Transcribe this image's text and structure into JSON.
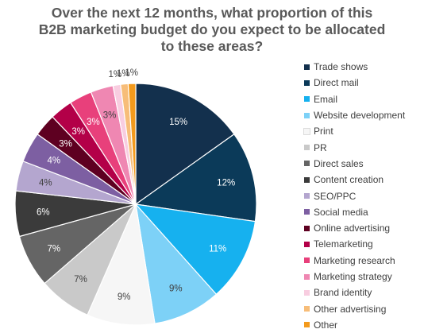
{
  "chart_data": {
    "type": "pie",
    "title_lines": [
      "Over the next 12 months, what proportion of this",
      "B2B marketing budget do you expect to be allocated",
      "to these areas?"
    ],
    "legend_position": "right",
    "slices": [
      {
        "label": "Trade shows",
        "value": 15,
        "display": "15%",
        "color": "#13304d"
      },
      {
        "label": "Direct mail",
        "value": 12,
        "display": "12%",
        "color": "#0b3a59"
      },
      {
        "label": "Email",
        "value": 11,
        "display": "11%",
        "color": "#16b1ef"
      },
      {
        "label": "Website development",
        "value": 9,
        "display": "9%",
        "color": "#7dd1f7"
      },
      {
        "label": "Print",
        "value": 9,
        "display": "9%",
        "color": "#f6f6f6"
      },
      {
        "label": "PR",
        "value": 7,
        "display": "7%",
        "color": "#c9c9c9"
      },
      {
        "label": "Direct sales",
        "value": 7,
        "display": "7%",
        "color": "#656565"
      },
      {
        "label": "Content creation",
        "value": 6,
        "display": "6%",
        "color": "#3b3b3b"
      },
      {
        "label": "SEO/PPC",
        "value": 4,
        "display": "4%",
        "color": "#b4a6cf"
      },
      {
        "label": "Social media",
        "value": 4,
        "display": "4%",
        "color": "#7d5fa2"
      },
      {
        "label": "Online advertising",
        "value": 3,
        "display": "3%",
        "color": "#5e0021"
      },
      {
        "label": "Telemarketing",
        "value": 3,
        "display": "3%",
        "color": "#b30048"
      },
      {
        "label": "Marketing research",
        "value": 3,
        "display": "3%",
        "color": "#e8407b"
      },
      {
        "label": "Marketing strategy",
        "value": 3,
        "display": "3%",
        "color": "#ef87b2"
      },
      {
        "label": "Brand identity",
        "value": 1,
        "display": "1%",
        "color": "#f8cde0"
      },
      {
        "label": "Other advertising",
        "value": 1,
        "display": "1%",
        "color": "#f7bd79"
      },
      {
        "label": "Other",
        "value": 1,
        "display": "1%",
        "color": "#f39a1c"
      }
    ]
  }
}
